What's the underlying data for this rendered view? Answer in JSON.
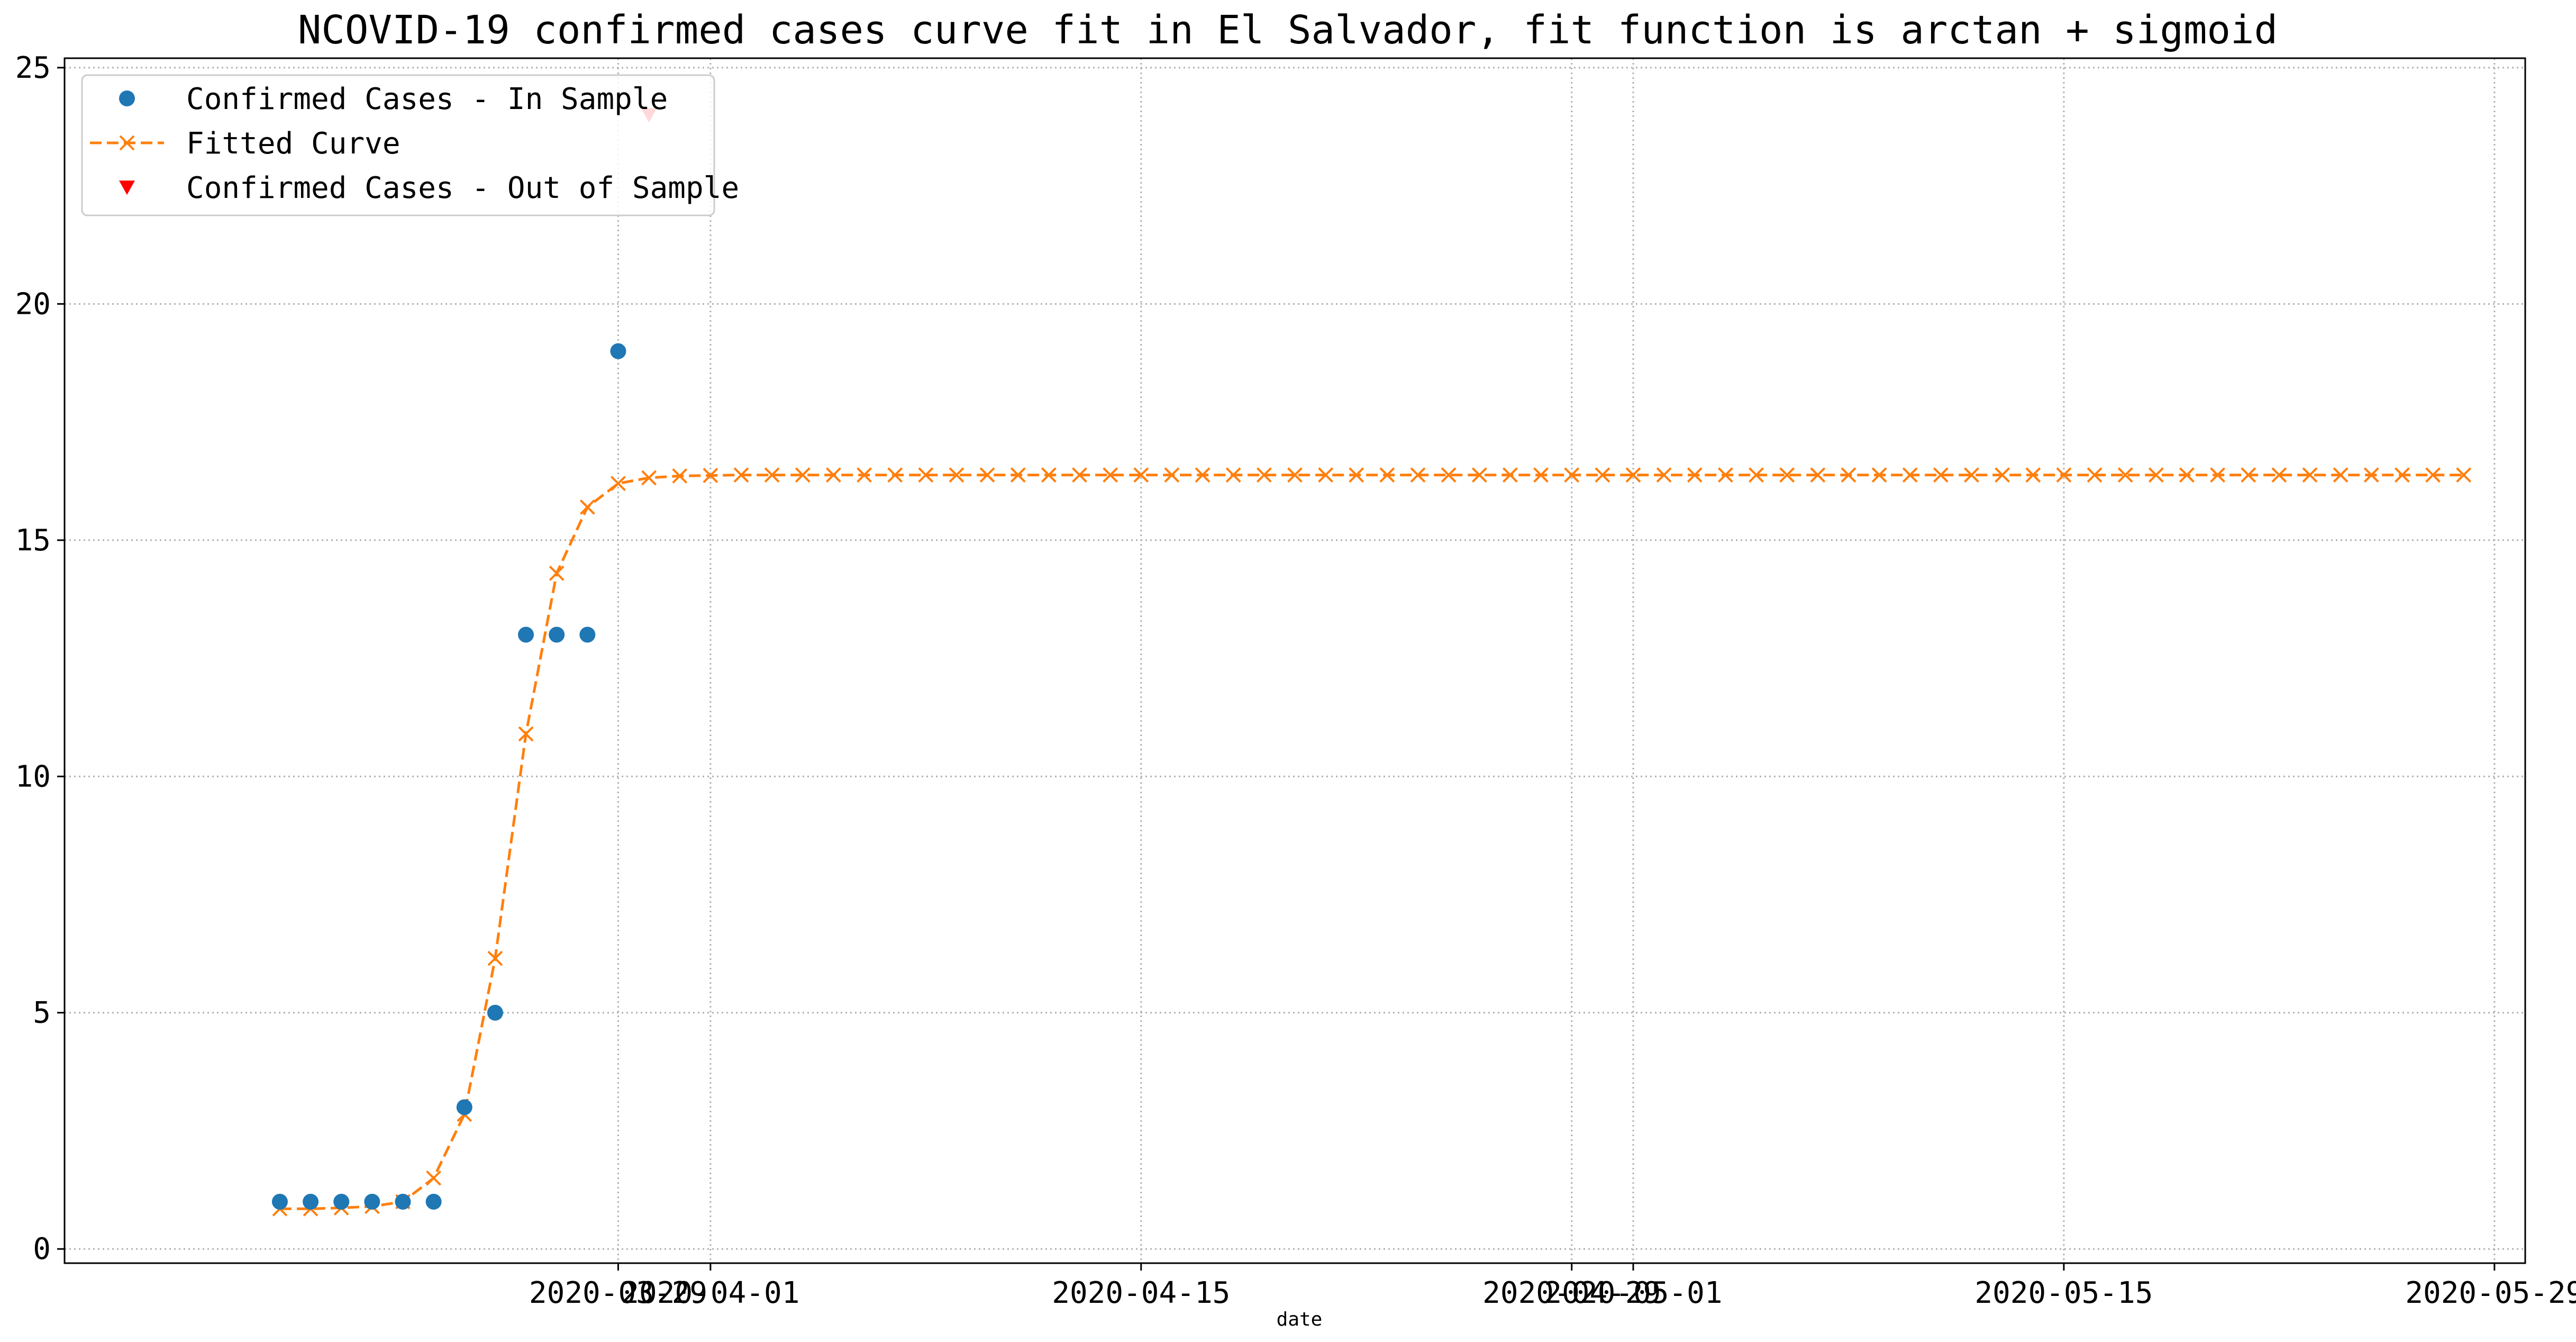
{
  "chart_data": {
    "type": "line",
    "title": "NCOVID-19 confirmed cases curve fit in El Salvador, fit function is arctan + sigmoid",
    "xlabel": "date",
    "ylabel": "",
    "grid": true,
    "legend_position": "top-left",
    "x_axis": {
      "type": "date",
      "range": [
        "2020-03-11",
        "2020-05-30"
      ],
      "tick_labels": [
        {
          "date": "2020-03-29",
          "label": "2020-03-29"
        },
        {
          "date": "2020-04-01",
          "label": "2020-04-01"
        },
        {
          "date": "2020-04-15",
          "label": "2020-04-15"
        },
        {
          "date": "2020-04-29",
          "label": "2020-04-29"
        },
        {
          "date": "2020-05-01",
          "label": "2020-05-01"
        },
        {
          "date": "2020-05-15",
          "label": "2020-05-15"
        },
        {
          "date": "2020-05-29",
          "label": "2020-05-29"
        }
      ]
    },
    "y_axis": {
      "range": [
        -0.3,
        25.2
      ],
      "ticks": [
        0,
        5,
        10,
        15,
        20,
        25
      ],
      "tick_labels": [
        "0",
        "5",
        "10",
        "15",
        "20",
        "25"
      ]
    },
    "legend": [
      {
        "name": "Confirmed Cases - In Sample",
        "marker": "circle",
        "color": "#1f77b4"
      },
      {
        "name": "Fitted Curve",
        "marker": "x",
        "line": "dashed",
        "color": "#ff7f0e"
      },
      {
        "name": "Confirmed Cases - Out of Sample",
        "marker": "triangle-down",
        "color": "#ff0000"
      }
    ],
    "series": [
      {
        "name": "Confirmed Cases - In Sample",
        "kind": "scatter",
        "color": "#1f77b4",
        "points": [
          {
            "x": "2020-03-18",
            "y": 1
          },
          {
            "x": "2020-03-19",
            "y": 1
          },
          {
            "x": "2020-03-20",
            "y": 1
          },
          {
            "x": "2020-03-21",
            "y": 1
          },
          {
            "x": "2020-03-22",
            "y": 1
          },
          {
            "x": "2020-03-23",
            "y": 1
          },
          {
            "x": "2020-03-24",
            "y": 3
          },
          {
            "x": "2020-03-25",
            "y": 5
          },
          {
            "x": "2020-03-26",
            "y": 13
          },
          {
            "x": "2020-03-27",
            "y": 13
          },
          {
            "x": "2020-03-28",
            "y": 13
          },
          {
            "x": "2020-03-29",
            "y": 19
          }
        ]
      },
      {
        "name": "Fitted Curve",
        "kind": "line",
        "color": "#ff7f0e",
        "start_date": "2020-03-18",
        "values": [
          0.85,
          0.85,
          0.87,
          0.9,
          1.0,
          1.5,
          2.85,
          6.15,
          10.9,
          14.3,
          15.7,
          16.2,
          16.32,
          16.36,
          16.37,
          16.38,
          16.38,
          16.38,
          16.38,
          16.38,
          16.38,
          16.38,
          16.38,
          16.38,
          16.38,
          16.38,
          16.38,
          16.38,
          16.38,
          16.38,
          16.38,
          16.38,
          16.38,
          16.38,
          16.38,
          16.38,
          16.38,
          16.38,
          16.38,
          16.38,
          16.38,
          16.38,
          16.38,
          16.38,
          16.38,
          16.38,
          16.38,
          16.38,
          16.38,
          16.38,
          16.38,
          16.38,
          16.38,
          16.38,
          16.38,
          16.38,
          16.38,
          16.38,
          16.38,
          16.38,
          16.38,
          16.38,
          16.38,
          16.38,
          16.38,
          16.38,
          16.38,
          16.38,
          16.38,
          16.38,
          16.38,
          16.38
        ]
      },
      {
        "name": "Confirmed Cases - Out of Sample",
        "kind": "scatter",
        "color": "#ff0000",
        "points": [
          {
            "x": "2020-03-30",
            "y": 24
          }
        ]
      }
    ]
  }
}
